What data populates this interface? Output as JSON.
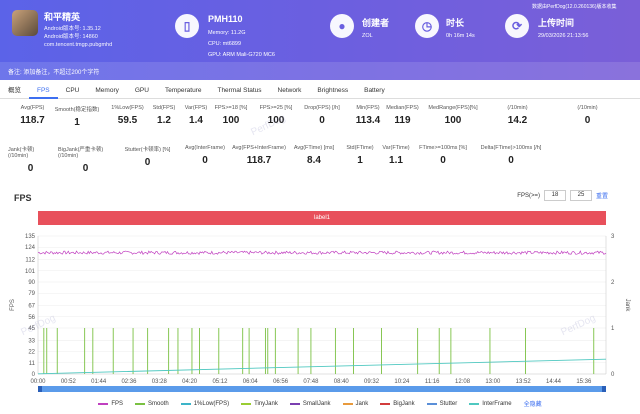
{
  "app": {
    "name": "和平精英",
    "android_version": "Android版本号: 1.35.12",
    "android_build": "Android版本号: 14860",
    "package": "com.tencent.tmgp.pubgmhd"
  },
  "device": {
    "title": "PMH110",
    "memory": "Memory: 11.2G",
    "cpu": "CPU: mt6899",
    "gpu": "GPU: ARM Mali-G720 MC6"
  },
  "creator": {
    "label": "创建者",
    "value": "ZOL"
  },
  "duration": {
    "label": "时长",
    "value": "0h 16m 14s"
  },
  "upload": {
    "label": "上传时间",
    "value": "29/03/2026 21:13:56",
    "version": "数据由PerfDog(12.0.260136)版本收集"
  },
  "note": "备注: 添加备注，不超过200个字符",
  "tabs": [
    "概览",
    "FPS",
    "CPU",
    "Memory",
    "GPU",
    "Temperature",
    "Thermal Status",
    "Network",
    "Brightness",
    "Battery"
  ],
  "stats_row1": [
    {
      "label": "Avg(FPS)",
      "value": "118.7"
    },
    {
      "label": "Smooth(稳定指数)",
      "value": "1"
    },
    {
      "label": "1%Low(FPS)",
      "value": "59.5"
    },
    {
      "label": "Std(FPS)",
      "value": "1.2"
    },
    {
      "label": "Var(FPS)",
      "value": "1.4"
    },
    {
      "label": "FPS>=18 [%]",
      "value": "100"
    },
    {
      "label": "FPS>=25 [%]",
      "value": "100"
    },
    {
      "label": "Drop(FPS) [/h]",
      "value": "0"
    },
    {
      "label": "Min(FPS)",
      "value": "113.4"
    },
    {
      "label": "Median(FPS)",
      "value": "119"
    },
    {
      "label": "MedRange(FPS)[%]",
      "value": "100"
    },
    {
      "label": "(/10min)",
      "value": "14.2"
    },
    {
      "label": "(/10min)",
      "value": "0"
    }
  ],
  "stats_row2": [
    {
      "label": "Jank(卡顿) (/10min)",
      "value": "0"
    },
    {
      "label": "BigJank(严重卡顿) (/10min)",
      "value": "0"
    },
    {
      "label": "Stutter(卡顿率) [%]",
      "value": "0"
    },
    {
      "label": "Avg(InterFrame)",
      "value": "0"
    },
    {
      "label": "Avg(FPS+InterFrame)",
      "value": "118.7"
    },
    {
      "label": "Avg(FTime) [ms]",
      "value": "8.4"
    },
    {
      "label": "Std(FTime)",
      "value": "1"
    },
    {
      "label": "Var(FTime)",
      "value": "1.1"
    },
    {
      "label": "FTime>=100ms [%]",
      "value": "0"
    },
    {
      "label": "Delta(FTime)>100ms [/h]",
      "value": "0"
    }
  ],
  "fps_section": {
    "title": "FPS",
    "filter_label": "FPS(>=)",
    "filter_a": "18",
    "filter_b": "25",
    "reset": "重置",
    "label_bar": "label1",
    "y_left_label": "FPS",
    "y_right_label": "Jank",
    "hide_all": "全隐藏"
  },
  "chart_data": {
    "type": "line",
    "x_ticks": [
      "00:00",
      "00:52",
      "01:44",
      "02:36",
      "03:28",
      "04:20",
      "05:12",
      "06:04",
      "06:56",
      "07:48",
      "08:40",
      "09:32",
      "10:24",
      "11:16",
      "12:08",
      "13:00",
      "13:52",
      "14:44",
      "15:36"
    ],
    "y_ticks_left": [
      0,
      11,
      22,
      33,
      45,
      56,
      67,
      79,
      90,
      101,
      112,
      124,
      135
    ],
    "y_ticks_left_labels": [
      "0",
      "11",
      "22",
      "33",
      "45",
      "56",
      "67",
      "79",
      "90",
      "101",
      "112",
      "124",
      "135"
    ],
    "y_ticks_right": [
      0,
      1,
      2,
      3
    ],
    "ylim_left": [
      0,
      135
    ],
    "ylim_right": [
      0,
      3
    ],
    "fps_mean": 118.7,
    "fps_min": 113.4,
    "smooth_spikes_at": [
      "00:10",
      "00:15",
      "00:33",
      "01:20",
      "01:34",
      "02:09",
      "02:43",
      "03:08",
      "03:44",
      "04:00",
      "04:24",
      "04:37",
      "05:10",
      "05:51",
      "06:02",
      "06:30",
      "06:34",
      "06:47",
      "07:26",
      "07:48",
      "08:30",
      "09:01",
      "09:49",
      "10:51",
      "11:28",
      "11:48",
      "12:55",
      "13:56",
      "15:53"
    ],
    "interframe_start": 0.2,
    "interframe_end": 14.5,
    "series": [
      {
        "name": "FPS",
        "color": "#c040c0"
      },
      {
        "name": "Smooth",
        "color": "#7ac142"
      },
      {
        "name": "1%Low(FPS)",
        "color": "#3cb4c8"
      },
      {
        "name": "TinyJank",
        "color": "#9acd32"
      },
      {
        "name": "SmallJank",
        "color": "#7a3fb0"
      },
      {
        "name": "Jank",
        "color": "#e89a3c"
      },
      {
        "name": "BigJank",
        "color": "#d23c3c"
      },
      {
        "name": "Stutter",
        "color": "#5a8fd8"
      },
      {
        "name": "InterFrame",
        "color": "#4fc8c0"
      }
    ]
  }
}
